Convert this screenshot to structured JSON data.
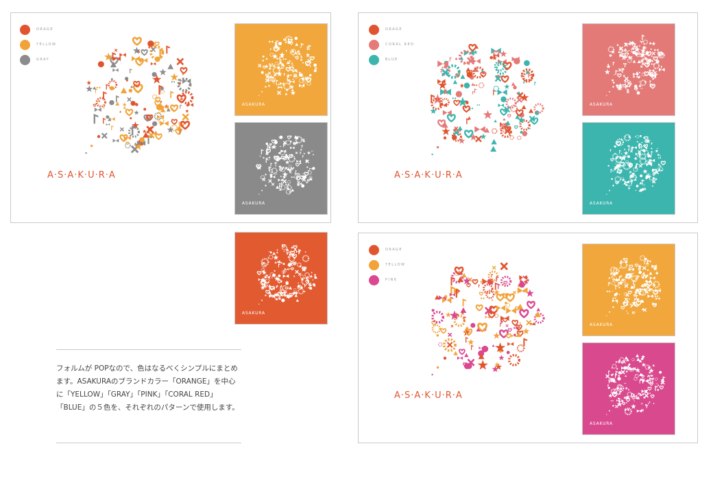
{
  "panel1": {
    "legend": [
      {
        "label": "ORAGE",
        "color": "#e05530"
      },
      {
        "label": "YELLOW",
        "color": "#f1a33a"
      },
      {
        "label": "GRAY",
        "color": "#8c8c8c"
      }
    ],
    "wordmark": "A·S·A·K·U·R·A",
    "wordmark_color": "#e05530",
    "swatches": [
      {
        "color": "#f1a73b",
        "word": "ASAKURA"
      },
      {
        "color": "#8a8a8a",
        "word": "ASAKURA"
      }
    ]
  },
  "panel2": {
    "legend": [
      {
        "label": "ORAGE",
        "color": "#e05530"
      },
      {
        "label": "CORAL RED",
        "color": "#e57a78"
      },
      {
        "label": "BLUE",
        "color": "#3db5ad"
      }
    ],
    "wordmark": "A·S·A·K·U·R·A",
    "wordmark_color": "#e05530",
    "swatches": [
      {
        "color": "#e37a77",
        "word": "ASAKURA"
      },
      {
        "color": "#3bb5ad",
        "word": "ASAKURA"
      }
    ]
  },
  "panel3": {
    "legend": [
      {
        "label": "ORAGE",
        "color": "#e05530"
      },
      {
        "label": "YELLOW",
        "color": "#f1a33a"
      },
      {
        "label": "PINK",
        "color": "#db4890"
      }
    ],
    "wordmark": "A·S·A·K·U·R·A",
    "wordmark_color": "#e05530",
    "swatches": [
      {
        "color": "#f1a73b",
        "word": "ASAKURA"
      },
      {
        "color": "#d9498e",
        "word": "ASAKURA"
      }
    ]
  },
  "standalone_swatch": {
    "color": "#e15a30",
    "word": "ASAKURA"
  },
  "caption": {
    "text": "フォルムが POPなので、色はなるべくシンプルにまとめます。ASAKURAのブランドカラー「ORANGE」を中心に「YELLOW」「GRAY」「PINK」「CORAL RED」「BLUE」の５色を、それぞれのパターンで使用します。"
  }
}
